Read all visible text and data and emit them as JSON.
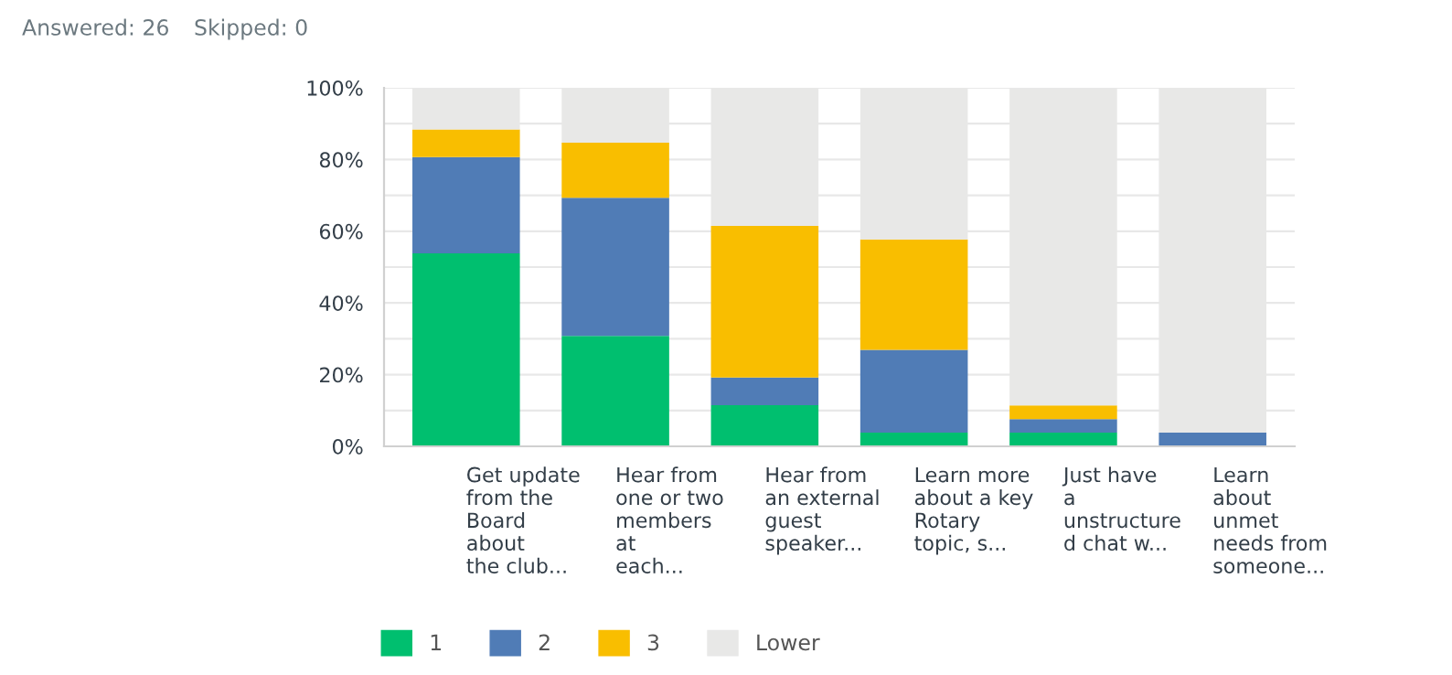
{
  "chart_data": {
    "type": "bar",
    "stacked": true,
    "annotations": [
      "Answered: 26",
      "Skipped: 0"
    ],
    "categories": [
      "Get update\nfrom the\nBoard\nabout\nthe club...",
      "Hear from\none or two\nmembers\nat\neach...",
      "Hear from\nan external\nguest\nspeaker...",
      "Learn more\nabout a key\nRotary\ntopic, s...",
      "Just have\na\nunstructure\nd chat w...",
      "Learn\nabout\nunmet\nneeds from\nsomeone..."
    ],
    "series": [
      {
        "name": "1",
        "color": "#00bf6f",
        "values": [
          53.8,
          30.8,
          11.5,
          3.8,
          3.8,
          0
        ]
      },
      {
        "name": "2",
        "color": "#507cb6",
        "values": [
          26.9,
          38.5,
          7.7,
          23.1,
          3.8,
          3.8
        ]
      },
      {
        "name": "3",
        "color": "#f9be00",
        "values": [
          7.7,
          15.4,
          42.3,
          30.8,
          3.8,
          0
        ]
      },
      {
        "name": "Lower",
        "color": "#e8e8e7",
        "values": [
          11.5,
          15.4,
          38.5,
          42.3,
          88.5,
          96.2
        ]
      }
    ],
    "ylim": [
      0,
      100
    ],
    "yticks": [
      {
        "value": 0,
        "label": "0%"
      },
      {
        "value": 10,
        "label": null
      },
      {
        "value": 20,
        "label": "20%"
      },
      {
        "value": 30,
        "label": null
      },
      {
        "value": 40,
        "label": "40%"
      },
      {
        "value": 50,
        "label": null
      },
      {
        "value": 60,
        "label": "60%"
      },
      {
        "value": 70,
        "label": null
      },
      {
        "value": 80,
        "label": "80%"
      },
      {
        "value": 90,
        "label": null
      },
      {
        "value": 100,
        "label": "100%"
      }
    ],
    "grid": "y",
    "legend": "bottom left"
  }
}
